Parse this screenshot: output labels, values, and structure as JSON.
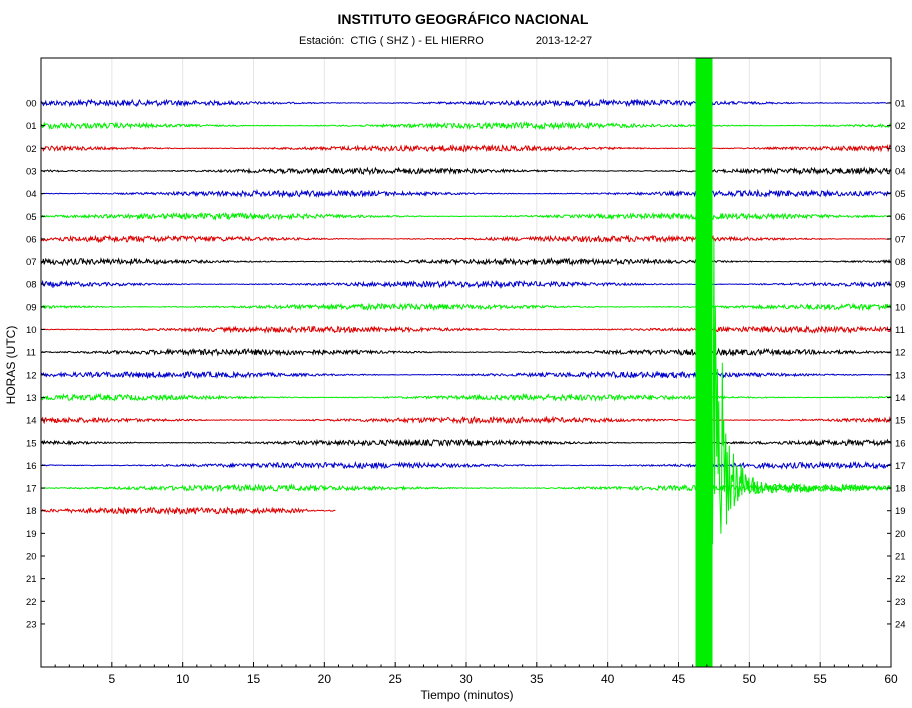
{
  "header": {
    "title": "INSTITUTO GEOGRÁFICO NACIONAL",
    "station_label": "Estación:",
    "station": "CTIG ( SHZ ) - EL HIERRO",
    "date": "2013-12-27"
  },
  "chart_data": {
    "type": "line",
    "title": "INSTITUTO GEOGRÁFICO NACIONAL",
    "subtitle": "Estación:  CTIG ( SHZ ) - EL HIERRO            2013-12-27",
    "xlabel": "Tiempo (minutos)",
    "ylabel": "HORAS (UTC)",
    "xlim": [
      0,
      60
    ],
    "x_ticks": [
      "5",
      "10",
      "15",
      "20",
      "25",
      "30",
      "35",
      "40",
      "45",
      "50",
      "55",
      "60"
    ],
    "left_hour_labels": [
      "00",
      "01",
      "02",
      "03",
      "04",
      "05",
      "06",
      "07",
      "08",
      "09",
      "10",
      "11",
      "12",
      "13",
      "14",
      "15",
      "16",
      "17",
      "18",
      "19",
      "20",
      "21",
      "22",
      "23"
    ],
    "right_hour_labels": [
      "01",
      "02",
      "03",
      "04",
      "05",
      "06",
      "07",
      "08",
      "09",
      "10",
      "11",
      "12",
      "13",
      "14",
      "15",
      "16",
      "17",
      "18",
      "19",
      "20",
      "21",
      "22",
      "23",
      "24"
    ],
    "grid": true,
    "trace_colors": [
      "#0000cc",
      "#00ee00",
      "#dd0000",
      "#000000"
    ],
    "series": [
      {
        "hour": "00",
        "end_minute": 60,
        "color": "#0000cc"
      },
      {
        "hour": "01",
        "end_minute": 60,
        "color": "#00ee00"
      },
      {
        "hour": "02",
        "end_minute": 60,
        "color": "#dd0000"
      },
      {
        "hour": "03",
        "end_minute": 60,
        "color": "#000000"
      },
      {
        "hour": "04",
        "end_minute": 60,
        "color": "#0000cc"
      },
      {
        "hour": "05",
        "end_minute": 60,
        "color": "#00ee00"
      },
      {
        "hour": "06",
        "end_minute": 60,
        "color": "#dd0000"
      },
      {
        "hour": "07",
        "end_minute": 60,
        "color": "#000000"
      },
      {
        "hour": "08",
        "end_minute": 60,
        "color": "#0000cc"
      },
      {
        "hour": "09",
        "end_minute": 60,
        "color": "#00ee00"
      },
      {
        "hour": "10",
        "end_minute": 60,
        "color": "#dd0000"
      },
      {
        "hour": "11",
        "end_minute": 60,
        "color": "#000000"
      },
      {
        "hour": "12",
        "end_minute": 60,
        "color": "#0000cc"
      },
      {
        "hour": "13",
        "end_minute": 60,
        "color": "#00ee00"
      },
      {
        "hour": "14",
        "end_minute": 60,
        "color": "#dd0000"
      },
      {
        "hour": "15",
        "end_minute": 60,
        "color": "#000000"
      },
      {
        "hour": "16",
        "end_minute": 60,
        "color": "#0000cc"
      },
      {
        "hour": "17",
        "end_minute": 60,
        "color": "#00ee00"
      },
      {
        "hour": "18",
        "end_minute": 20.8,
        "color": "#dd0000"
      }
    ],
    "event": {
      "hour": "17",
      "start_minute": 46.2,
      "peak_end_minute": 47.4,
      "coda_end_minute": 60,
      "color": "#00ee00"
    }
  }
}
